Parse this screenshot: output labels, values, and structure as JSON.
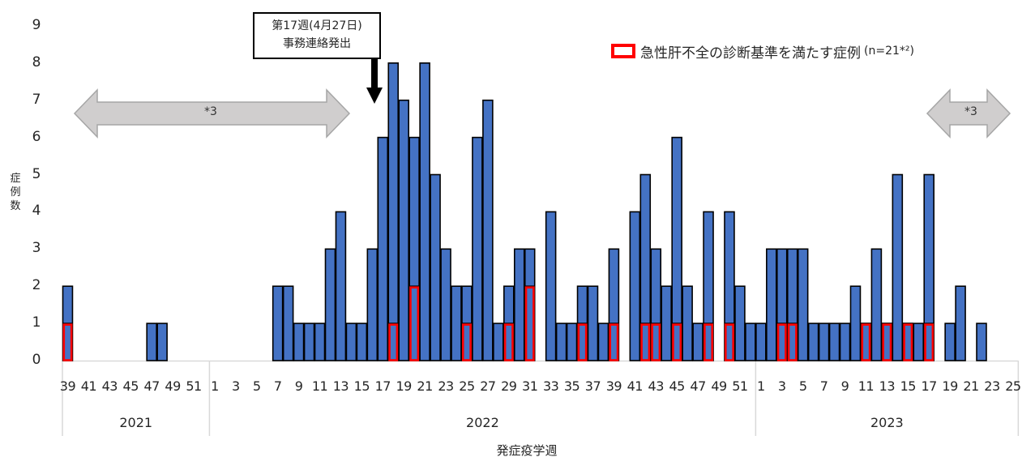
{
  "chart_data": {
    "type": "bar",
    "title": "",
    "xlabel": "発症疫学週",
    "ylabel": "症例数",
    "ylim": [
      0,
      9
    ],
    "yticks": [
      0,
      1,
      2,
      3,
      4,
      5,
      6,
      7,
      8,
      9
    ],
    "grid": false,
    "legend_position": "top-right",
    "legend": [
      {
        "label": "急性肝不全の診断基準を満たす症例",
        "suffix": "(n=21*²)",
        "style": "red outlined box"
      }
    ],
    "annotations": [
      {
        "text": "第17週(4月27日)\n事務連絡発出",
        "type": "callout-arrow",
        "target": "2022 week 17"
      },
      {
        "text": "*3",
        "type": "double-arrow",
        "span": "2021 wk39 – 2022 wk15"
      },
      {
        "text": "*3",
        "type": "double-arrow",
        "span": "2023 wk17 – 2023 wk25"
      }
    ],
    "years": [
      {
        "year": "2021",
        "weeks": [
          39,
          40,
          41,
          42,
          43,
          44,
          45,
          46,
          47,
          48,
          49,
          50,
          51,
          52
        ]
      },
      {
        "year": "2022",
        "weeks": [
          1,
          2,
          3,
          4,
          5,
          6,
          7,
          8,
          9,
          10,
          11,
          12,
          13,
          14,
          15,
          16,
          17,
          18,
          19,
          20,
          21,
          22,
          23,
          24,
          25,
          26,
          27,
          28,
          29,
          30,
          31,
          32,
          33,
          34,
          35,
          36,
          37,
          38,
          39,
          40,
          41,
          42,
          43,
          44,
          45,
          46,
          47,
          48,
          49,
          50,
          51,
          52
        ]
      },
      {
        "year": "2023",
        "weeks": [
          1,
          2,
          3,
          4,
          5,
          6,
          7,
          8,
          9,
          10,
          11,
          12,
          13,
          14,
          15,
          16,
          17,
          18,
          19,
          20,
          21,
          22,
          23,
          24,
          25
        ]
      }
    ],
    "series": [
      {
        "name": "症例数",
        "color": "#4472C4",
        "values": [
          2,
          0,
          0,
          0,
          0,
          0,
          0,
          0,
          1,
          1,
          0,
          0,
          0,
          0,
          0,
          0,
          0,
          0,
          0,
          0,
          2,
          2,
          1,
          1,
          1,
          3,
          4,
          1,
          1,
          3,
          6,
          8,
          7,
          6,
          8,
          5,
          3,
          2,
          2,
          6,
          7,
          1,
          2,
          3,
          3,
          0,
          4,
          1,
          1,
          2,
          2,
          1,
          3,
          0,
          4,
          5,
          3,
          2,
          6,
          2,
          1,
          4,
          0,
          4,
          2,
          1,
          1,
          3,
          3,
          3,
          3,
          1,
          1,
          1,
          1,
          2,
          1,
          3,
          1,
          5,
          1,
          1,
          5,
          0,
          1,
          2,
          0,
          1,
          0,
          0,
          0
        ]
      },
      {
        "name": "急性肝不全の診断基準を満たす症例",
        "color": "#FF0000",
        "values": [
          1,
          0,
          0,
          0,
          0,
          0,
          0,
          0,
          0,
          0,
          0,
          0,
          0,
          0,
          0,
          0,
          0,
          0,
          0,
          0,
          0,
          0,
          0,
          0,
          0,
          0,
          0,
          0,
          0,
          0,
          0,
          1,
          0,
          2,
          0,
          0,
          0,
          0,
          1,
          0,
          0,
          0,
          1,
          0,
          2,
          0,
          0,
          0,
          0,
          1,
          0,
          0,
          1,
          0,
          0,
          1,
          1,
          0,
          1,
          0,
          0,
          1,
          0,
          1,
          0,
          0,
          0,
          0,
          1,
          1,
          0,
          0,
          0,
          0,
          0,
          0,
          1,
          0,
          1,
          0,
          1,
          0,
          1,
          0,
          0,
          0,
          0,
          0,
          0,
          0,
          0
        ]
      }
    ]
  },
  "axis": {
    "x_title": "発症疫学週",
    "y_title": "症例数"
  },
  "callout": {
    "line1": "第17週(4月27日)",
    "line2": "事務連絡発出"
  },
  "legend": {
    "label": "急性肝不全の診断基準を満たす症例",
    "n": "(n=21*²)"
  },
  "arrows": {
    "left_label": "*3",
    "right_label": "*3"
  },
  "colors": {
    "bar": "#4472C4",
    "highlight": "#FF0000",
    "arrow_fill": "#D0CECE",
    "arrow_stroke": "#A6A6A6"
  }
}
